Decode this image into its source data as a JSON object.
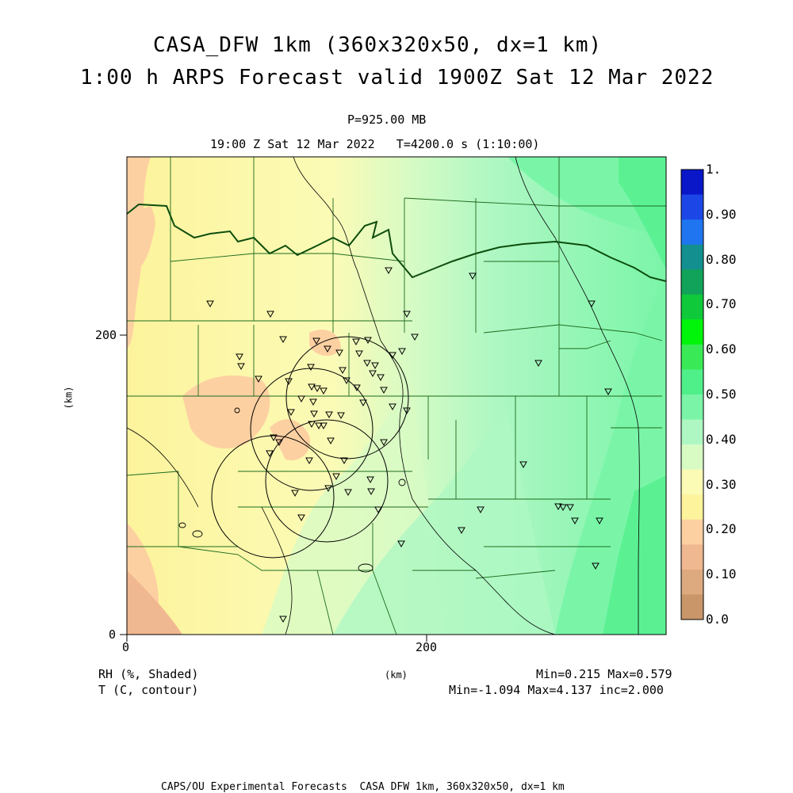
{
  "title": {
    "line1": "CASA_DFW 1km (360x320x50, dx=1 km)",
    "line2": "1:00 h ARPS Forecast valid 1900Z Sat 12 Mar 2022"
  },
  "level": "P=925.00 MB",
  "time_line": "19:00 Z Sat 12 Mar 2022   T=4200.0 s (1:10:00)",
  "axes": {
    "xlabel": "(km)",
    "ylabel": "(km)",
    "x_ticks": [
      "0",
      "200"
    ],
    "y_ticks": [
      "0",
      "200"
    ]
  },
  "colorbar": {
    "labels": [
      "1.",
      "0.90",
      "0.80",
      "0.70",
      "0.60",
      "0.50",
      "0.40",
      "0.30",
      "0.20",
      "0.10",
      "0.0"
    ],
    "colors": [
      "#0a17c9",
      "#1c46e6",
      "#1f74ef",
      "#138f8f",
      "#12a35a",
      "#0fc93a",
      "#00f50a",
      "#39ea56",
      "#4ff08a",
      "#7af5a8",
      "#aef7c3",
      "#d8fbc4",
      "#fbfbb6",
      "#fdf39c",
      "#fdd0a2",
      "#f0b891",
      "#ddaa80",
      "#c9966a"
    ]
  },
  "legend": {
    "shaded": "RH (%, Shaded)",
    "contour": "T (C, contour)",
    "stats1": "Min=0.215 Max=0.579",
    "stats2": "Min=-1.094 Max=4.137 inc=2.000"
  },
  "footer": "CAPS/OU Experimental Forecasts  CASA DFW 1km, 360x320x50, dx=1 km"
}
